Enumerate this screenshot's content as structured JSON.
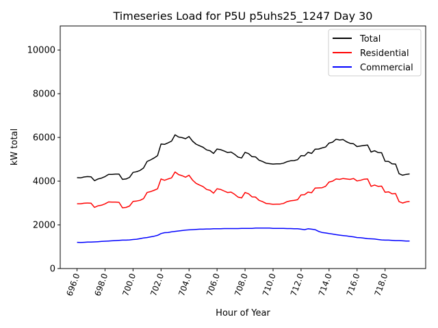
{
  "chart_data": {
    "type": "line",
    "title": "Timeseries Load for P5U p5uhs25_1247  Day 30",
    "xlabel": "Hour of Year",
    "ylabel": "kW total",
    "xlim": [
      694.8,
      720.9
    ],
    "ylim": [
      0,
      11100
    ],
    "xticks": [
      696.0,
      698.0,
      700.0,
      702.0,
      704.0,
      706.0,
      708.0,
      710.0,
      712.0,
      714.0,
      716.0,
      718.0
    ],
    "xtick_labels": [
      "696.0",
      "698.0",
      "700.0",
      "702.0",
      "704.0",
      "706.0",
      "708.0",
      "710.0",
      "712.0",
      "714.0",
      "716.0",
      "718.0"
    ],
    "yticks": [
      0,
      2000,
      4000,
      6000,
      8000,
      10000
    ],
    "ytick_labels": [
      "0",
      "2000",
      "4000",
      "6000",
      "8000",
      "10000"
    ],
    "legend_placement": "top-right",
    "grid": false,
    "x_start": 696.0,
    "x_step": 0.25,
    "series": [
      {
        "name": "Total",
        "color": "#000000",
        "values": [
          4160,
          4150,
          4190,
          4210,
          4200,
          4020,
          4100,
          4140,
          4210,
          4310,
          4310,
          4320,
          4320,
          4080,
          4100,
          4170,
          4400,
          4430,
          4490,
          4600,
          4900,
          4970,
          5060,
          5170,
          5700,
          5680,
          5750,
          5830,
          6120,
          6020,
          5990,
          5940,
          6040,
          5830,
          5690,
          5620,
          5550,
          5430,
          5390,
          5270,
          5470,
          5440,
          5380,
          5310,
          5330,
          5230,
          5100,
          5060,
          5320,
          5260,
          5120,
          5110,
          4960,
          4900,
          4820,
          4800,
          4780,
          4790,
          4790,
          4820,
          4890,
          4930,
          4940,
          4980,
          5170,
          5160,
          5320,
          5270,
          5460,
          5470,
          5520,
          5560,
          5740,
          5780,
          5920,
          5880,
          5900,
          5800,
          5730,
          5710,
          5580,
          5610,
          5630,
          5650,
          5330,
          5390,
          5310,
          5300,
          4910,
          4900,
          4790,
          4780,
          4340,
          4270,
          4310,
          4330
        ]
      },
      {
        "name": "Residential",
        "color": "#ff0000",
        "values": [
          2960,
          2960,
          2990,
          3000,
          2990,
          2800,
          2870,
          2900,
          2960,
          3050,
          3040,
          3040,
          3030,
          2780,
          2800,
          2860,
          3070,
          3090,
          3120,
          3200,
          3480,
          3520,
          3580,
          3650,
          4100,
          4040,
          4100,
          4150,
          4420,
          4300,
          4250,
          4180,
          4270,
          4050,
          3900,
          3820,
          3750,
          3620,
          3580,
          3450,
          3650,
          3620,
          3550,
          3480,
          3500,
          3400,
          3270,
          3230,
          3480,
          3420,
          3280,
          3270,
          3120,
          3060,
          2980,
          2960,
          2940,
          2950,
          2950,
          2980,
          3060,
          3100,
          3120,
          3150,
          3370,
          3380,
          3500,
          3470,
          3680,
          3690,
          3700,
          3760,
          3960,
          4000,
          4100,
          4080,
          4120,
          4100,
          4080,
          4120,
          4010,
          4040,
          4090,
          4100,
          3760,
          3820,
          3760,
          3770,
          3490,
          3510,
          3420,
          3430,
          3060,
          3000,
          3050,
          3070
        ]
      },
      {
        "name": "Commercial",
        "color": "#0000ff",
        "values": [
          1200,
          1190,
          1200,
          1210,
          1210,
          1220,
          1230,
          1240,
          1250,
          1260,
          1270,
          1280,
          1290,
          1300,
          1300,
          1310,
          1330,
          1340,
          1370,
          1400,
          1420,
          1450,
          1480,
          1520,
          1600,
          1640,
          1650,
          1680,
          1700,
          1720,
          1740,
          1760,
          1770,
          1780,
          1790,
          1800,
          1800,
          1810,
          1810,
          1820,
          1820,
          1820,
          1830,
          1830,
          1830,
          1830,
          1830,
          1840,
          1840,
          1840,
          1840,
          1850,
          1850,
          1850,
          1850,
          1850,
          1840,
          1840,
          1840,
          1840,
          1830,
          1830,
          1820,
          1820,
          1800,
          1780,
          1820,
          1800,
          1780,
          1700,
          1650,
          1630,
          1600,
          1580,
          1550,
          1530,
          1510,
          1490,
          1470,
          1450,
          1420,
          1410,
          1390,
          1370,
          1360,
          1350,
          1330,
          1310,
          1300,
          1300,
          1290,
          1280,
          1280,
          1270,
          1260,
          1260
        ]
      }
    ]
  }
}
